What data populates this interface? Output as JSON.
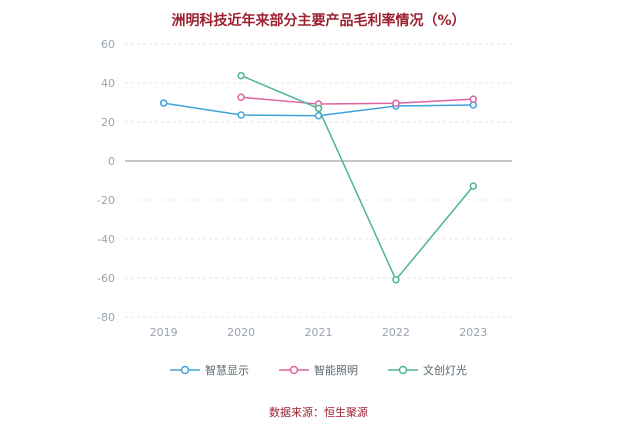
{
  "title": "洲明科技近年来部分主要产品毛利率情况（%）",
  "source": "数据来源：恒生聚源",
  "colors": {
    "title_text": "#9c2130",
    "source_text": "#9c2130",
    "axis_label": "#9aa3ad",
    "grid_line": "#e4e7ea",
    "zero_line": "#8c8c8c"
  },
  "chart_data": {
    "type": "line",
    "title": "洲明科技近年来部分主要产品毛利率情况（%）",
    "categories": [
      "2019",
      "2020",
      "2021",
      "2022",
      "2023"
    ],
    "series": [
      {
        "name": "智慧显示",
        "color": "#41a3dc",
        "values": [
          29.7,
          23.6,
          23.2,
          28.2,
          28.7
        ]
      },
      {
        "name": "智能照明",
        "color": "#e0639f",
        "values": [
          null,
          32.7,
          29.2,
          29.6,
          31.7
        ]
      },
      {
        "name": "文创灯光",
        "color": "#4db39a",
        "values": [
          null,
          43.8,
          27.0,
          -60.9,
          -12.9
        ]
      }
    ],
    "xlabel": "",
    "ylabel": "",
    "ylim": [
      -80,
      60
    ],
    "yticks": [
      -80,
      -60,
      -40,
      -20,
      0,
      20,
      40,
      60
    ],
    "grid": true,
    "grid_style": "dashed",
    "legend_position": "bottom",
    "marker": "open-circle"
  }
}
